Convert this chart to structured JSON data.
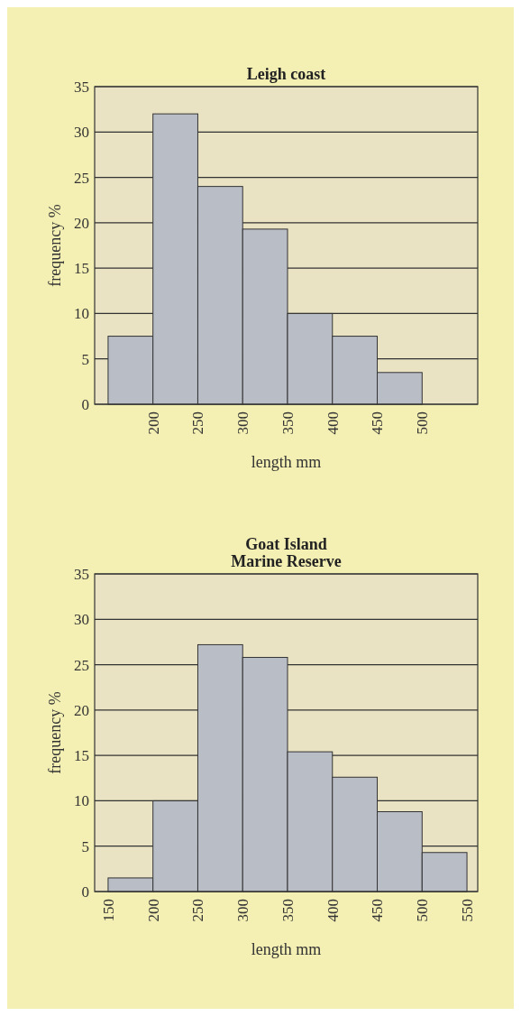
{
  "chart_data": [
    {
      "type": "histogram",
      "title": "Leigh coast",
      "xlabel": "length mm",
      "ylabel": "frequency %",
      "bins": [
        150,
        200,
        250,
        300,
        350,
        400,
        450,
        500
      ],
      "values": [
        7.5,
        32,
        24,
        19.3,
        10,
        7.5,
        3.5
      ],
      "color": "#b9bdc6",
      "xlim": [
        135,
        562
      ],
      "xticks": [
        200,
        250,
        300,
        350,
        400,
        450,
        500
      ],
      "ylim": [
        0,
        35
      ],
      "yticks": [
        0,
        5,
        10,
        15,
        20,
        25,
        30,
        35
      ],
      "grid": "y"
    },
    {
      "type": "histogram",
      "title": "Goat Island\nMarine Reserve",
      "xlabel": "length mm",
      "ylabel": "frequency %",
      "bins": [
        150,
        200,
        250,
        300,
        350,
        400,
        450,
        500,
        550
      ],
      "values": [
        1.5,
        10,
        27.2,
        25.8,
        15.4,
        12.6,
        8.8,
        4.3
      ],
      "color": "#b9bdc6",
      "xlim": [
        135,
        562
      ],
      "xticks": [
        150,
        200,
        250,
        300,
        350,
        400,
        450,
        500,
        550
      ],
      "ylim": [
        0,
        35
      ],
      "yticks": [
        0,
        5,
        10,
        15,
        20,
        25,
        30,
        35
      ],
      "grid": "y"
    }
  ]
}
